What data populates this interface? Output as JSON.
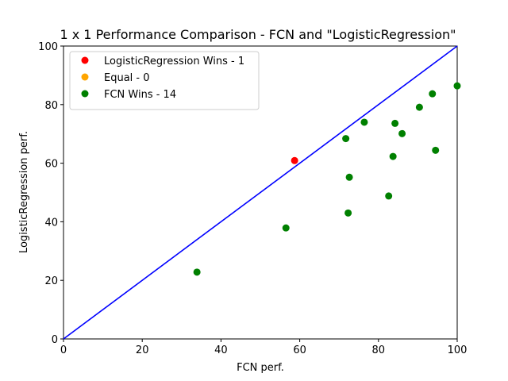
{
  "chart_data": {
    "type": "scatter",
    "title": "1 x 1 Performance Comparison - FCN and \"LogisticRegression\"",
    "xlabel": "FCN perf.",
    "ylabel": "LogisticRegression perf.",
    "xlim": [
      0,
      100
    ],
    "ylim": [
      0,
      100
    ],
    "xticks": [
      0,
      20,
      40,
      60,
      80,
      100
    ],
    "yticks": [
      0,
      20,
      40,
      60,
      80,
      100
    ],
    "grid": false,
    "legend_position": "top-left",
    "reference_line": {
      "type": "diagonal",
      "from": [
        0,
        0
      ],
      "to": [
        100,
        100
      ],
      "color": "#0000ff"
    },
    "series": [
      {
        "name": "LogisticRegression Wins - 1",
        "color": "#ff0000",
        "points": [
          [
            58.7,
            60.9
          ]
        ]
      },
      {
        "name": "Equal - 0",
        "color": "#ffa500",
        "points": []
      },
      {
        "name": "FCN Wins - 14",
        "color": "#008000",
        "points": [
          [
            33.9,
            22.8
          ],
          [
            56.5,
            37.9
          ],
          [
            71.7,
            68.4
          ],
          [
            72.3,
            43.0
          ],
          [
            72.6,
            55.2
          ],
          [
            76.4,
            74.0
          ],
          [
            82.6,
            48.8
          ],
          [
            83.7,
            62.3
          ],
          [
            84.2,
            73.6
          ],
          [
            86.0,
            70.1
          ],
          [
            90.4,
            79.1
          ],
          [
            93.7,
            83.7
          ],
          [
            94.5,
            64.4
          ],
          [
            100.0,
            86.4
          ]
        ]
      }
    ]
  }
}
